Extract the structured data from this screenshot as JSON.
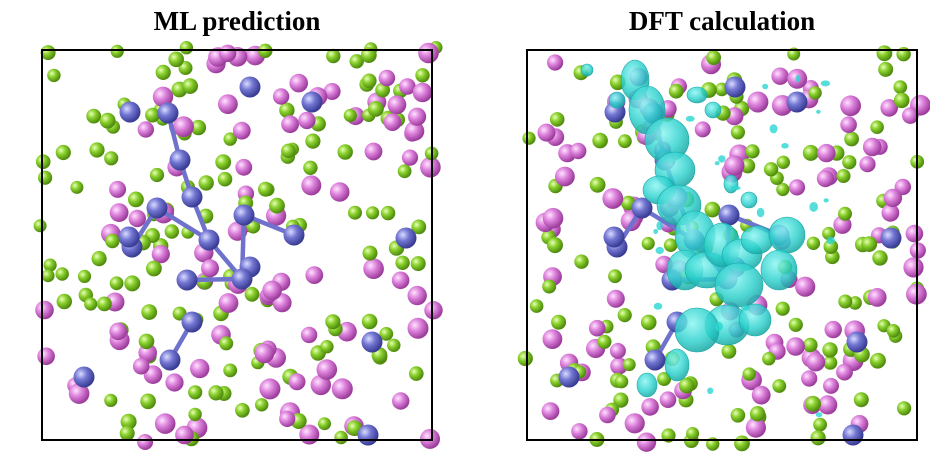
{
  "panels": {
    "left": {
      "title": "ML prediction"
    },
    "right": {
      "title": "DFT calculation"
    }
  },
  "legend_colors": {
    "magenta_atom": "#d77ad6",
    "green_atom": "#86cc2a",
    "blue_atom": "#6f72cc",
    "bond": "#6f72cc",
    "density_isosurface": "#2bd6d2",
    "frame": "#000000"
  }
}
